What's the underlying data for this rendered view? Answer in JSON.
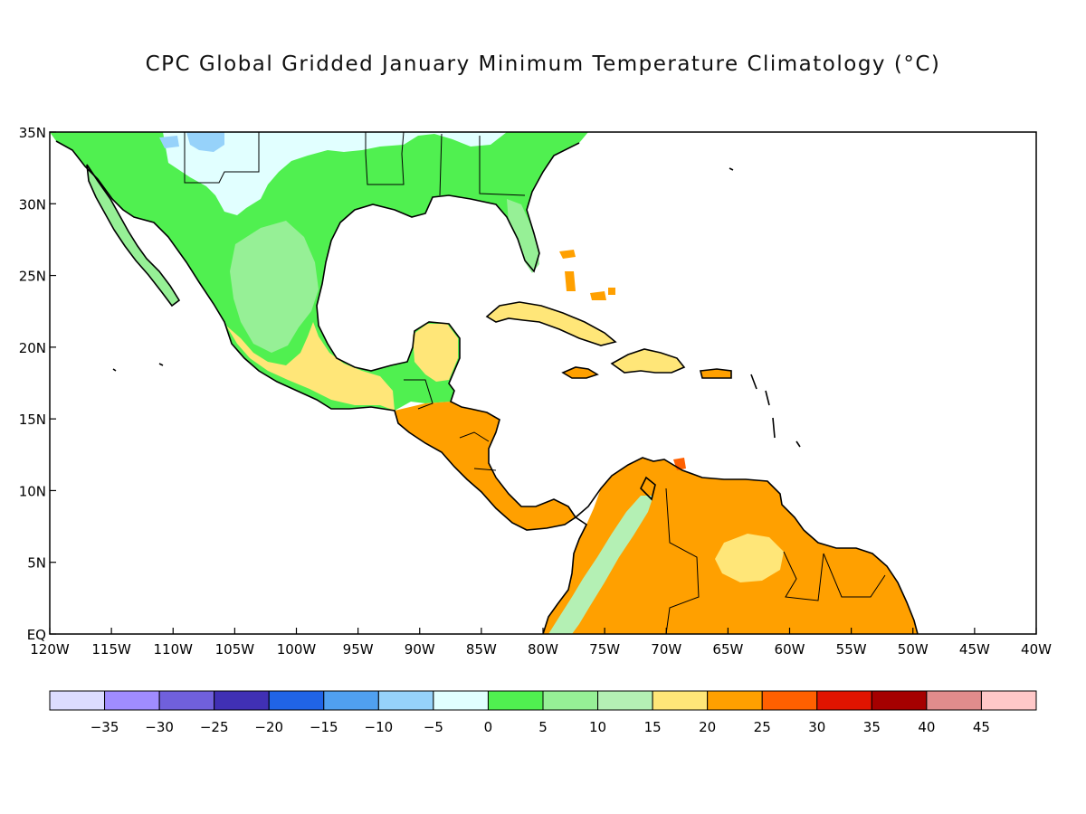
{
  "title": "CPC Global Gridded January Minimum Temperature Climatology (°C)",
  "x_axis": {
    "ticks": [
      "120W",
      "115W",
      "110W",
      "105W",
      "100W",
      "95W",
      "90W",
      "85W",
      "80W",
      "75W",
      "70W",
      "65W",
      "60W",
      "55W",
      "50W",
      "45W",
      "40W"
    ]
  },
  "y_axis": {
    "ticks": [
      "EQ",
      "5N",
      "10N",
      "15N",
      "20N",
      "25N",
      "30N",
      "35N"
    ]
  },
  "colorbar": {
    "colors": [
      "#dcdcff",
      "#a08cff",
      "#7060dc",
      "#4030b4",
      "#2064e6",
      "#50a0f0",
      "#96d2fa",
      "#e1ffff",
      "#50f050",
      "#96f096",
      "#b4f0b4",
      "#ffe678",
      "#ffa000",
      "#ff6000",
      "#e11400",
      "#a50000",
      "#e18c8c",
      "#ffc8c8"
    ],
    "labels": [
      "-35",
      "-30",
      "-25",
      "-20",
      "-15",
      "-10",
      "-5",
      "0",
      "5",
      "10",
      "15",
      "20",
      "25",
      "30",
      "35",
      "40",
      "45"
    ]
  },
  "land_colors": {
    "cold": "#e1ffff",
    "very_cold": "#96d2fa",
    "band_0_5": "#50f050",
    "band_5_10": "#96f096",
    "band_10_15": "#b4f0b4",
    "band_15_20": "#ffe678",
    "band_20_25": "#ffa000",
    "band_25_30": "#ff6000"
  }
}
